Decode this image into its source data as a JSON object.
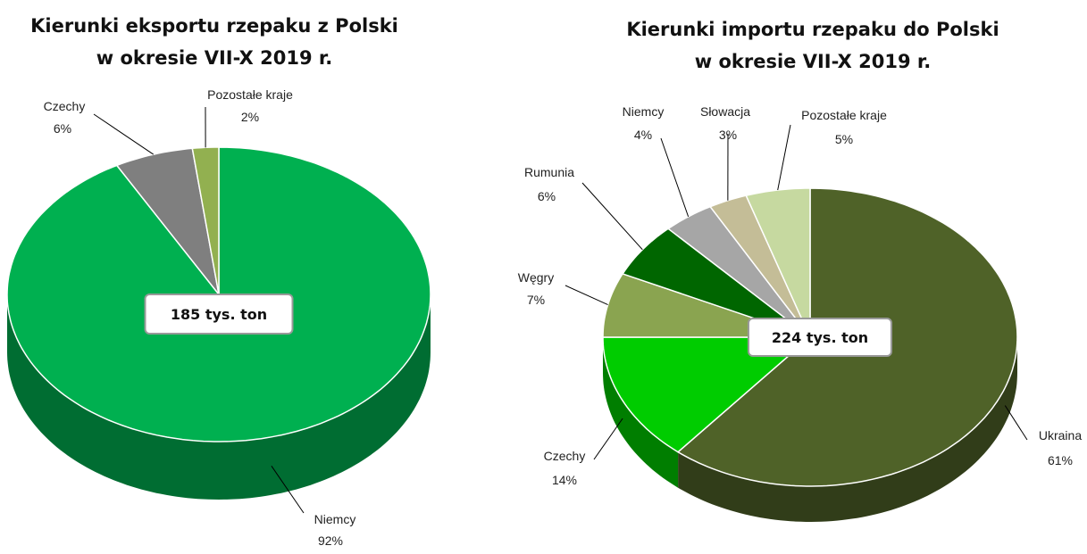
{
  "chart_data": [
    {
      "type": "pie",
      "title": [
        "Kierunki eksportu rzepaku z Polski",
        "w okresie VII-X 2019 r."
      ],
      "annotation": "185 tys. ton",
      "categories": [
        "Niemcy",
        "Czechy",
        "Pozostałe kraje"
      ],
      "values": [
        92,
        6,
        2
      ],
      "value_labels": [
        "92%",
        "6%",
        "2%"
      ],
      "colors": [
        "#00b050",
        "#7f7f7f",
        "#92b050"
      ]
    },
    {
      "type": "pie",
      "title": [
        "Kierunki importu rzepaku do Polski",
        "w okresie VII-X 2019 r."
      ],
      "annotation": "224 tys. ton",
      "categories": [
        "Ukraina",
        "Czechy",
        "Węgry",
        "Rumunia",
        "Niemcy",
        "Słowacja",
        "Pozostałe kraje"
      ],
      "values": [
        61,
        14,
        7,
        6,
        4,
        3,
        5
      ],
      "value_labels": [
        "61%",
        "14%",
        "7%",
        "6%",
        "4%",
        "3%",
        "5%"
      ],
      "colors": [
        "#4f6228",
        "#00cc00",
        "#8aa450",
        "#006600",
        "#a6a6a6",
        "#c4bd97",
        "#c6d9a0"
      ]
    }
  ]
}
